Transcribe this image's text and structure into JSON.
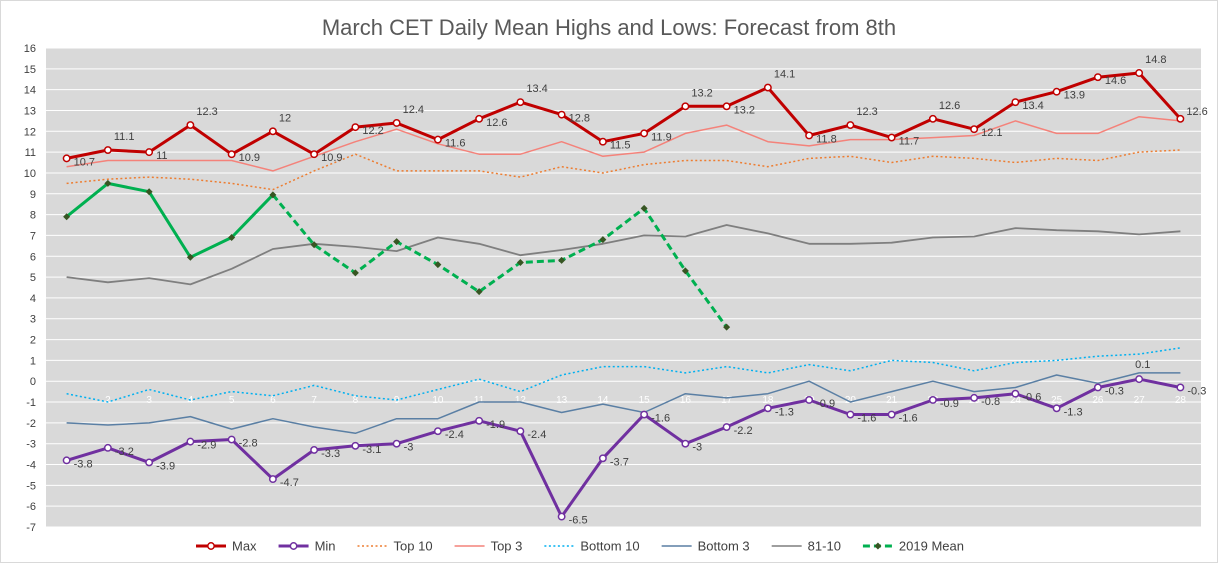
{
  "chart_data": {
    "type": "line",
    "title": "March CET Daily Mean Highs and Lows: Forecast from 8th",
    "ylim": [
      -7,
      16
    ],
    "yticks": [
      -7,
      -6,
      -5,
      -4,
      -3,
      -2,
      -1,
      0,
      1,
      2,
      3,
      4,
      5,
      6,
      7,
      8,
      9,
      10,
      11,
      12,
      13,
      14,
      15,
      16
    ],
    "x": [
      "1",
      "2",
      "3",
      "4",
      "5",
      "6",
      "7",
      "8",
      "9",
      "10",
      "11",
      "12",
      "13",
      "14",
      "15",
      "16",
      "17",
      "18",
      "19",
      "20",
      "21",
      "22",
      "23",
      "24",
      "25",
      "26",
      "27",
      "28"
    ],
    "x_tick_labels": [
      "2",
      "3",
      "4",
      "5",
      "6",
      "7",
      "8",
      "9",
      "10",
      "11",
      "12",
      "13",
      "14",
      "15",
      "16",
      "17",
      "18",
      "19",
      "20",
      "21",
      "22",
      "23",
      "24",
      "25",
      "26",
      "27",
      "28"
    ],
    "grid": true,
    "legend_position": "bottom",
    "colors": {
      "plot_bg": "#d9d9d9",
      "grid": "#ffffff",
      "max": "#c00000",
      "min": "#7030a0",
      "top10": "#ed7d31",
      "top3": "#f4827a",
      "bottom10": "#00b0f0",
      "bottom3": "#5a7fa4",
      "avg": "#7f7f7f",
      "mean2019": "#00b050"
    },
    "series": [
      {
        "key": "max",
        "name": "Max",
        "color": "#c00000",
        "style": "solid",
        "width": 3,
        "marker": "circle",
        "labels": true,
        "values": [
          10.7,
          11.1,
          11.0,
          12.3,
          10.9,
          12.0,
          10.9,
          12.2,
          12.4,
          11.6,
          12.6,
          13.4,
          12.8,
          11.5,
          11.9,
          13.2,
          13.2,
          14.1,
          11.8,
          12.3,
          11.7,
          12.6,
          12.1,
          13.4,
          13.9,
          14.6,
          14.8,
          12.6
        ],
        "value_labels": [
          "10.7",
          "11.1",
          "11",
          "12.3",
          "10.9",
          "12",
          "10.9",
          "12.2",
          "12.4",
          "11.6",
          "12.6",
          "13.4",
          "12.8",
          "11.5",
          "11.9",
          "13.2",
          "13.2",
          "14.1",
          "11.8",
          "12.3",
          "11.7",
          "12.6",
          "12.1",
          "13.4",
          "13.9",
          "14.6",
          "14.8",
          "12.6"
        ]
      },
      {
        "key": "min",
        "name": "Min",
        "color": "#7030a0",
        "style": "solid",
        "width": 3,
        "marker": "circle",
        "labels": true,
        "values": [
          -3.8,
          -3.2,
          -3.9,
          -2.9,
          -2.8,
          -4.7,
          -3.3,
          -3.1,
          -3.0,
          -2.4,
          -1.9,
          -2.4,
          -6.5,
          -3.7,
          -1.6,
          -3.0,
          -2.2,
          -1.3,
          -0.9,
          -1.6,
          -1.6,
          -0.9,
          -0.8,
          -0.6,
          -1.3,
          -0.3,
          0.1,
          -0.3
        ],
        "value_labels": [
          "-3.8",
          "-3.2",
          "-3.9",
          "-2.9",
          "-2.8",
          "-4.7",
          "-3.3",
          "-3.1",
          "-3",
          "-2.4",
          "-1.9",
          "-2.4",
          "-6.5",
          "-3.7",
          "-1.6",
          "-3",
          "-2.2",
          "-1.3",
          "-0.9",
          "-1.6",
          "-1.6",
          "-0.9",
          "-0.8",
          "-0.6",
          "-1.3",
          "-0.3",
          "0.1",
          "-0.3"
        ]
      },
      {
        "key": "top10",
        "name": "Top 10",
        "color": "#ed7d31",
        "style": "dotted",
        "width": 1.5,
        "values": [
          9.5,
          9.7,
          9.8,
          9.7,
          9.5,
          9.2,
          10.1,
          10.9,
          10.1,
          10.1,
          10.1,
          9.8,
          10.3,
          10.0,
          10.4,
          10.6,
          10.6,
          10.3,
          10.7,
          10.8,
          10.5,
          10.8,
          10.7,
          10.5,
          10.7,
          10.6,
          11.0,
          11.1
        ]
      },
      {
        "key": "top3",
        "name": "Top 3",
        "color": "#f4827a",
        "style": "solid",
        "width": 1.5,
        "values": [
          10.3,
          10.6,
          10.6,
          10.6,
          10.6,
          10.1,
          10.8,
          11.5,
          12.1,
          11.4,
          10.9,
          10.9,
          11.5,
          10.8,
          11.0,
          11.9,
          12.3,
          11.5,
          11.3,
          11.6,
          11.6,
          11.7,
          11.8,
          12.5,
          11.9,
          11.9,
          12.7,
          12.5
        ]
      },
      {
        "key": "bottom10",
        "name": "Bottom 10",
        "color": "#00b0f0",
        "style": "dotted",
        "width": 1.5,
        "values": [
          -0.6,
          -1.0,
          -0.4,
          -0.9,
          -0.5,
          -0.7,
          -0.2,
          -0.7,
          -0.9,
          -0.4,
          0.1,
          -0.5,
          0.3,
          0.7,
          0.7,
          0.4,
          0.7,
          0.4,
          0.8,
          0.5,
          1.0,
          0.9,
          0.5,
          0.9,
          1.0,
          1.2,
          1.3,
          1.6
        ]
      },
      {
        "key": "bottom3",
        "name": "Bottom 3",
        "color": "#5a7fa4",
        "style": "solid",
        "width": 1.5,
        "values": [
          -2.0,
          -2.1,
          -2.0,
          -1.7,
          -2.3,
          -1.8,
          -2.2,
          -2.5,
          -1.8,
          -1.8,
          -1.0,
          -1.0,
          -1.5,
          -1.1,
          -1.5,
          -0.6,
          -0.8,
          -0.6,
          0.0,
          -1.0,
          -0.5,
          0.0,
          -0.5,
          -0.3,
          0.3,
          -0.1,
          0.4,
          0.4
        ]
      },
      {
        "key": "avg",
        "name": "81-10",
        "color": "#7f7f7f",
        "style": "solid",
        "width": 1.8,
        "values": [
          5.0,
          4.75,
          4.95,
          4.65,
          5.4,
          6.35,
          6.6,
          6.45,
          6.25,
          6.9,
          6.6,
          6.05,
          6.3,
          6.6,
          7.0,
          6.95,
          7.5,
          7.1,
          6.6,
          6.6,
          6.65,
          6.9,
          6.95,
          7.35,
          7.25,
          7.2,
          7.05,
          7.2
        ]
      },
      {
        "key": "mean2019",
        "name": "2019 Mean",
        "color": "#00b050",
        "style": "mixed",
        "solid_until_index": 5,
        "width": 3,
        "marker": "diamond",
        "values": [
          7.9,
          9.5,
          9.1,
          5.95,
          6.9,
          8.95,
          6.55,
          5.2,
          6.7,
          5.6,
          4.3,
          5.7,
          5.8,
          6.8,
          8.3,
          5.3,
          2.6,
          null,
          null,
          null,
          null,
          null,
          null,
          null,
          null,
          null,
          null,
          null
        ]
      }
    ]
  }
}
